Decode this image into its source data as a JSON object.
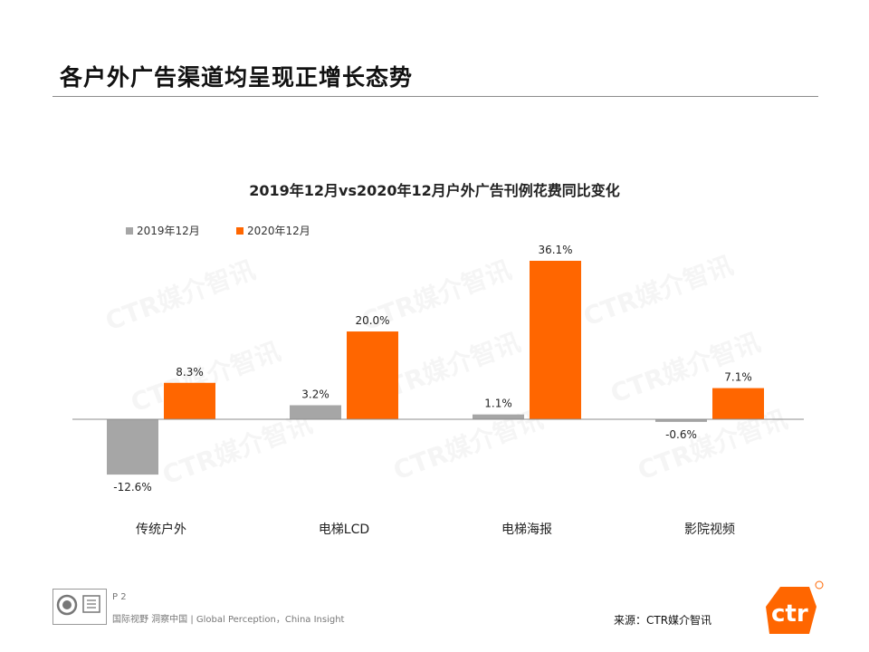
{
  "slide": {
    "title": "各户外广告渠道均呈现正增长态势",
    "page_number": "P 2",
    "slogan": "国际视野 洞察中国 | Global Perception，China Insight",
    "source": "来源：CTR媒介智讯",
    "logo_text": "ctr",
    "watermark_text": "CTR媒介智讯"
  },
  "colors": {
    "series_2019": "#a6a6a6",
    "series_2020": "#ff6600",
    "brand": "#ff6600"
  },
  "chart_data": {
    "type": "bar",
    "title": "2019年12月vs2020年12月户外广告刊例花费同比变化",
    "categories": [
      "传统户外",
      "电梯LCD",
      "电梯海报",
      "影院视频"
    ],
    "series": [
      {
        "name": "2019年12月",
        "values": [
          -12.6,
          3.2,
          1.1,
          -0.6
        ],
        "labels": [
          "-12.6%",
          "3.2%",
          "1.1%",
          "-0.6%"
        ]
      },
      {
        "name": "2020年12月",
        "values": [
          8.3,
          20.0,
          36.1,
          7.1
        ],
        "labels": [
          "8.3%",
          "20.0%",
          "36.1%",
          "7.1%"
        ]
      }
    ],
    "unit": "%",
    "legend_position": "top-left",
    "grid": false
  }
}
